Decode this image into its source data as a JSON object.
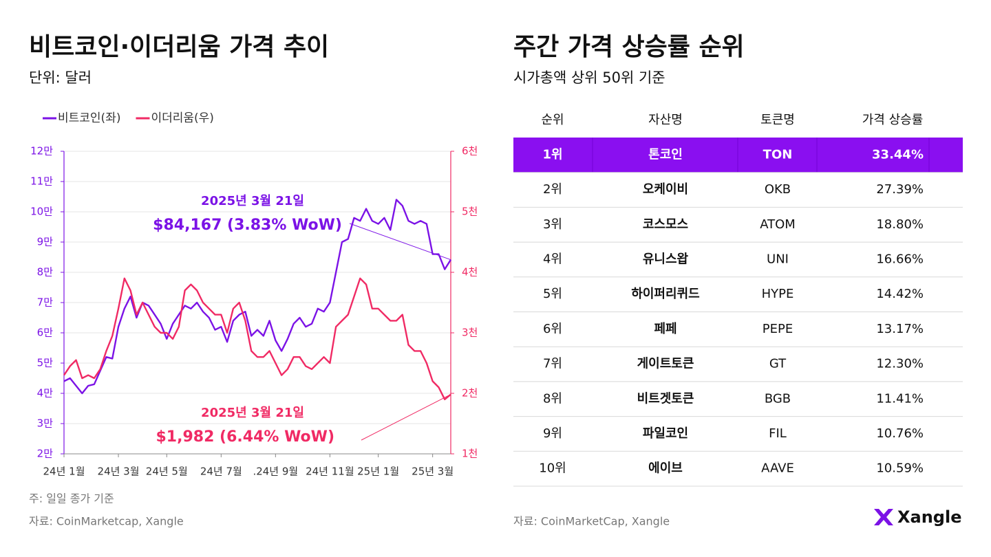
{
  "chart_data": {
    "type": "line",
    "title": "비트코인·이더리움 가격 추이",
    "subtitle": "단위: 달러",
    "note": "주: 일일 종가 기준",
    "source": "자료: CoinMarketcap, Xangle",
    "legend": "top-left",
    "grid": true,
    "categories": [
      "24년 1월",
      null,
      null,
      null,
      null,
      null,
      null,
      null,
      null,
      "24년 3월",
      null,
      null,
      null,
      null,
      null,
      null,
      null,
      "24년 5월",
      null,
      null,
      null,
      null,
      null,
      null,
      null,
      null,
      "24년 7월",
      null,
      null,
      null,
      null,
      null,
      null,
      null,
      null,
      ".24년 9월",
      null,
      null,
      null,
      null,
      null,
      null,
      null,
      null,
      "24년 11월",
      null,
      null,
      null,
      null,
      null,
      null,
      null,
      "25년 1월",
      null,
      null,
      null,
      null,
      null,
      null,
      null,
      null,
      "25년 3월",
      null,
      null,
      null
    ],
    "series": [
      {
        "name": "비트코인(좌)",
        "color": "#7b12e6",
        "axis": "y",
        "values": [
          44000,
          45000,
          42500,
          40000,
          42500,
          43000,
          47500,
          52000,
          51500,
          62000,
          68000,
          72000,
          65000,
          70000,
          69000,
          66000,
          63000,
          58000,
          63000,
          66000,
          69000,
          68000,
          70000,
          67000,
          65000,
          61000,
          62000,
          57000,
          64000,
          66000,
          67000,
          59000,
          61000,
          59000,
          64000,
          57500,
          54000,
          58000,
          63000,
          65000,
          62000,
          63000,
          68000,
          67000,
          70000,
          80000,
          90000,
          91000,
          98000,
          97000,
          101000,
          97000,
          96000,
          98000,
          94000,
          104000,
          102000,
          97000,
          96000,
          97000,
          96000,
          86000,
          86000,
          81000,
          84167
        ]
      },
      {
        "name": "이더리움(우)",
        "color": "#f02a64",
        "axis": "y2",
        "values": [
          2300,
          2450,
          2550,
          2250,
          2300,
          2250,
          2400,
          2700,
          2950,
          3400,
          3900,
          3700,
          3300,
          3500,
          3300,
          3100,
          3000,
          3000,
          2900,
          3100,
          3700,
          3800,
          3700,
          3500,
          3400,
          3300,
          3300,
          3000,
          3400,
          3500,
          3200,
          2700,
          2600,
          2600,
          2700,
          2500,
          2300,
          2400,
          2600,
          2600,
          2450,
          2400,
          2500,
          2600,
          2500,
          3100,
          3200,
          3300,
          3600,
          3900,
          3800,
          3400,
          3400,
          3300,
          3200,
          3200,
          3300,
          2800,
          2700,
          2700,
          2500,
          2200,
          2100,
          1900,
          1982
        ]
      }
    ],
    "annotations": [
      {
        "date": "2025년 3월 21일",
        "text": "$84,167 (3.83% WoW)"
      },
      {
        "date": "2025년 3월 21일",
        "text": "$1,982 (6.44% WoW)"
      }
    ],
    "ylim": [
      20000,
      120000
    ],
    "yticks": [
      {
        "value": 20000,
        "label": "2만"
      },
      {
        "value": 30000,
        "label": "3만"
      },
      {
        "value": 40000,
        "label": "4만"
      },
      {
        "value": 50000,
        "label": "5만"
      },
      {
        "value": 60000,
        "label": "6만"
      },
      {
        "value": 70000,
        "label": "7만"
      },
      {
        "value": 80000,
        "label": "8만"
      },
      {
        "value": 90000,
        "label": "9만"
      },
      {
        "value": 100000,
        "label": "10만"
      },
      {
        "value": 110000,
        "label": "11만"
      },
      {
        "value": 120000,
        "label": "12만"
      }
    ],
    "y2lim": [
      1000,
      6000
    ],
    "y2ticks": [
      {
        "value": 1000,
        "label": "1천"
      },
      {
        "value": 2000,
        "label": "2천"
      },
      {
        "value": 3000,
        "label": "3천"
      },
      {
        "value": 4000,
        "label": "4천"
      },
      {
        "value": 5000,
        "label": "5천"
      },
      {
        "value": 6000,
        "label": "6천"
      }
    ]
  },
  "ranking": {
    "title": "주간 가격 상승률 순위",
    "subtitle": "시가총액 상위 50위 기준",
    "table": {
      "header": [
        "순위",
        "자산명",
        "토큰명",
        "가격 상승률"
      ],
      "rows": [
        [
          "1위",
          "톤코인",
          "TON",
          "33.44%"
        ],
        [
          "2위",
          "오케이비",
          "OKB",
          "27.39%"
        ],
        [
          "3위",
          "코스모스",
          "ATOM",
          "18.80%"
        ],
        [
          "4위",
          "유니스왑",
          "UNI",
          "16.66%"
        ],
        [
          "5위",
          "하이퍼리퀴드",
          "HYPE",
          "14.42%"
        ],
        [
          "6위",
          "페페",
          "PEPE",
          "13.17%"
        ],
        [
          "7위",
          "게이트토큰",
          "GT",
          "12.30%"
        ],
        [
          "8위",
          "비트겟토큰",
          "BGB",
          "11.41%"
        ],
        [
          "9위",
          "파일코인",
          "FIL",
          "10.76%"
        ],
        [
          "10위",
          "에이브",
          "AAVE",
          "10.59%"
        ]
      ]
    },
    "source": "자료: CoinMarketCap, Xangle"
  },
  "logo": "Xangle"
}
